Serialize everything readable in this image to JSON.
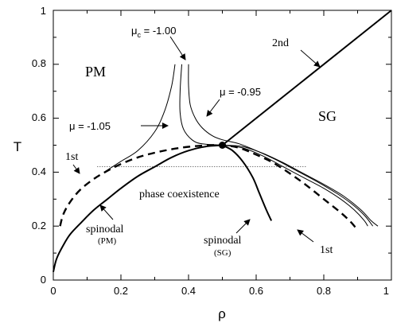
{
  "chart_data": {
    "type": "line",
    "xlabel": "ρ",
    "ylabel": "T",
    "xlim": [
      0,
      1
    ],
    "ylim": [
      0,
      1
    ],
    "x_ticks": [
      "0",
      "0.2",
      "0.4",
      "0.6",
      "0.8",
      "1"
    ],
    "y_ticks": [
      "0",
      "0.2",
      "0.4",
      "0.6",
      "0.8",
      "1"
    ],
    "regions": {
      "pm": "PM",
      "sg": "SG",
      "coexistence": "phase coexistence"
    },
    "labels": {
      "mu_c_prefix": "μ",
      "mu_c_sub": "c",
      "mu_c_value": " = -1.00",
      "mu_095": "μ = -0.95",
      "mu_105": "μ = -1.05",
      "second": "2nd",
      "first_left": "1st",
      "first_right": "1st",
      "spinodal_pm": "spinodal",
      "spinodal_pm_sub": "(PM)",
      "spinodal_sg": "spinodal",
      "spinodal_sg_sub": "(SG)"
    },
    "critical_point": {
      "x": 0.5,
      "y": 0.5
    },
    "series": [
      {
        "id": "second-order-line",
        "style": "solid-thick",
        "points": [
          [
            0.5,
            0.5
          ],
          [
            1.0,
            1.0
          ]
        ]
      },
      {
        "id": "spinodal-pm",
        "style": "solid-thick",
        "points": [
          [
            0.0,
            0.03
          ],
          [
            0.01,
            0.08
          ],
          [
            0.03,
            0.13
          ],
          [
            0.05,
            0.17
          ],
          [
            0.08,
            0.21
          ],
          [
            0.12,
            0.26
          ],
          [
            0.16,
            0.3
          ],
          [
            0.2,
            0.34
          ],
          [
            0.25,
            0.385
          ],
          [
            0.3,
            0.42
          ],
          [
            0.35,
            0.455
          ],
          [
            0.4,
            0.48
          ],
          [
            0.45,
            0.495
          ],
          [
            0.5,
            0.5
          ]
        ]
      },
      {
        "id": "spinodal-sg",
        "style": "solid-thick",
        "points": [
          [
            0.5,
            0.5
          ],
          [
            0.53,
            0.48
          ],
          [
            0.56,
            0.44
          ],
          [
            0.59,
            0.38
          ],
          [
            0.61,
            0.32
          ],
          [
            0.63,
            0.26
          ],
          [
            0.645,
            0.22
          ]
        ]
      },
      {
        "id": "first-order-boundary",
        "style": "dashed-thick",
        "points": [
          [
            0.02,
            0.2
          ],
          [
            0.03,
            0.245
          ],
          [
            0.05,
            0.29
          ],
          [
            0.08,
            0.335
          ],
          [
            0.12,
            0.375
          ],
          [
            0.16,
            0.405
          ],
          [
            0.2,
            0.43
          ],
          [
            0.25,
            0.455
          ],
          [
            0.3,
            0.472
          ],
          [
            0.35,
            0.485
          ],
          [
            0.4,
            0.494
          ],
          [
            0.45,
            0.499
          ],
          [
            0.5,
            0.5
          ],
          [
            0.55,
            0.49
          ],
          [
            0.6,
            0.465
          ],
          [
            0.65,
            0.435
          ],
          [
            0.7,
            0.395
          ],
          [
            0.75,
            0.35
          ],
          [
            0.8,
            0.3
          ],
          [
            0.85,
            0.25
          ],
          [
            0.88,
            0.215
          ],
          [
            0.9,
            0.185
          ]
        ]
      },
      {
        "id": "isochem-mu-105",
        "style": "solid-thin",
        "points": [
          [
            0.15,
            0.4
          ],
          [
            0.2,
            0.44
          ],
          [
            0.25,
            0.48
          ],
          [
            0.3,
            0.55
          ],
          [
            0.33,
            0.63
          ],
          [
            0.35,
            0.72
          ],
          [
            0.36,
            0.8
          ]
        ]
      },
      {
        "id": "isochem-mu-100",
        "style": "solid-thin",
        "points": [
          [
            0.38,
            0.8
          ],
          [
            0.375,
            0.7
          ],
          [
            0.375,
            0.62
          ],
          [
            0.385,
            0.56
          ],
          [
            0.41,
            0.52
          ],
          [
            0.44,
            0.505
          ],
          [
            0.5,
            0.5
          ],
          [
            0.56,
            0.49
          ],
          [
            0.62,
            0.46
          ],
          [
            0.68,
            0.42
          ],
          [
            0.74,
            0.38
          ],
          [
            0.8,
            0.34
          ],
          [
            0.85,
            0.3
          ],
          [
            0.89,
            0.26
          ],
          [
            0.92,
            0.22
          ],
          [
            0.93,
            0.2
          ]
        ]
      },
      {
        "id": "isochem-mu-095",
        "style": "solid-thin",
        "points": [
          [
            0.4,
            0.8
          ],
          [
            0.4,
            0.72
          ],
          [
            0.405,
            0.65
          ],
          [
            0.42,
            0.6
          ],
          [
            0.44,
            0.565
          ],
          [
            0.47,
            0.535
          ],
          [
            0.5,
            0.52
          ],
          [
            0.55,
            0.505
          ],
          [
            0.6,
            0.48
          ],
          [
            0.66,
            0.445
          ],
          [
            0.72,
            0.405
          ],
          [
            0.78,
            0.365
          ],
          [
            0.84,
            0.32
          ],
          [
            0.88,
            0.285
          ],
          [
            0.92,
            0.24
          ],
          [
            0.945,
            0.2
          ]
        ]
      },
      {
        "id": "isochem-extra",
        "style": "solid-thin",
        "points": [
          [
            0.5,
            0.5
          ],
          [
            0.56,
            0.495
          ],
          [
            0.62,
            0.47
          ],
          [
            0.68,
            0.435
          ],
          [
            0.74,
            0.395
          ],
          [
            0.8,
            0.355
          ],
          [
            0.86,
            0.31
          ],
          [
            0.91,
            0.26
          ],
          [
            0.94,
            0.22
          ],
          [
            0.96,
            0.2
          ]
        ]
      },
      {
        "id": "coexistence-tie-line",
        "style": "dotted",
        "points": [
          [
            0.13,
            0.42
          ],
          [
            0.75,
            0.42
          ]
        ]
      }
    ]
  }
}
